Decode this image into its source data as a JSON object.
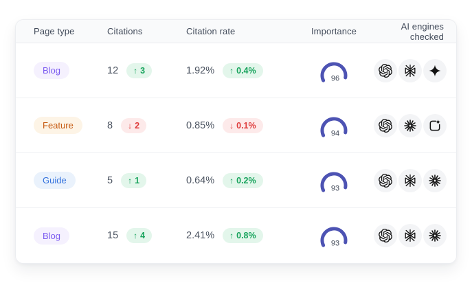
{
  "colors": {
    "gauge": "#4d53b3",
    "delta-up-text": "#17a35c",
    "delta-up-bg": "#e3f6eb",
    "delta-down-text": "#df3d3d",
    "delta-down-bg": "#fdeaea",
    "badge-blog-text": "#7b5bf0",
    "badge-blog-bg": "#f5f1fe",
    "badge-feature-text": "#c65a11",
    "badge-feature-bg": "#fdf4e6",
    "badge-guide-text": "#3472dd",
    "badge-guide-bg": "#eaf2fc"
  },
  "icons": {
    "up_arrow": "↑",
    "down_arrow": "↓"
  },
  "table": {
    "headers": [
      "Page type",
      "Citations",
      "Citation rate",
      "Importance",
      "AI engines checked"
    ],
    "rows": [
      {
        "page_type": "Blog",
        "page_type_style": "blog",
        "citations": "12",
        "citations_trend": "up",
        "citations_delta": "3",
        "citation_rate": "1.92%",
        "rate_trend": "up",
        "rate_delta": "0.4%",
        "importance": "96",
        "engines": [
          "openai",
          "perplexity",
          "gemini"
        ]
      },
      {
        "page_type": "Feature",
        "page_type_style": "feature",
        "citations": "8",
        "citations_trend": "down",
        "citations_delta": "2",
        "citation_rate": "0.85%",
        "rate_trend": "down",
        "rate_delta": "0.1%",
        "importance": "94",
        "engines": [
          "openai",
          "claude",
          "compose"
        ]
      },
      {
        "page_type": "Guide",
        "page_type_style": "guide",
        "citations": "5",
        "citations_trend": "up",
        "citations_delta": "1",
        "citation_rate": "0.64%",
        "rate_trend": "up",
        "rate_delta": "0.2%",
        "importance": "93",
        "engines": [
          "openai",
          "perplexity",
          "claude"
        ]
      },
      {
        "page_type": "Blog",
        "page_type_style": "blog",
        "citations": "15",
        "citations_trend": "up",
        "citations_delta": "4",
        "citation_rate": "2.41%",
        "rate_trend": "up",
        "rate_delta": "0.8%",
        "importance": "93",
        "engines": [
          "openai",
          "perplexity",
          "claude"
        ]
      }
    ]
  }
}
